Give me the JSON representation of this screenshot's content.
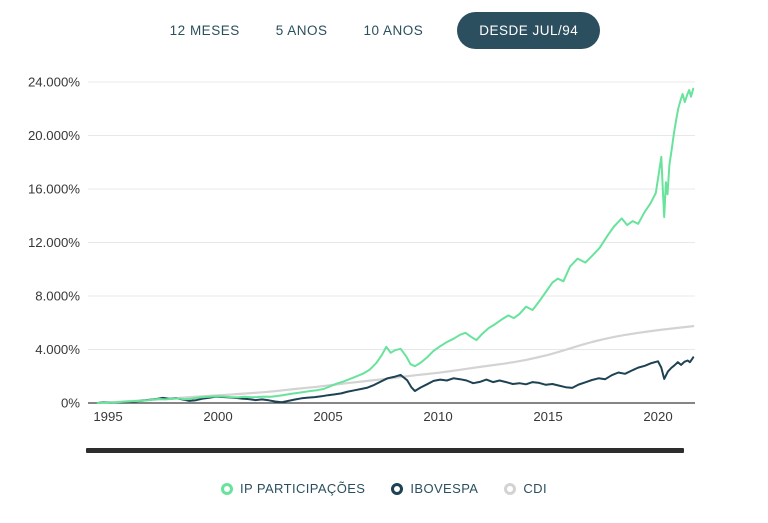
{
  "tabs": {
    "items": [
      {
        "label": "12 MESES",
        "active": false
      },
      {
        "label": "5 ANOS",
        "active": false
      },
      {
        "label": "10 ANOS",
        "active": false
      },
      {
        "label": "DESDE JUL/94",
        "active": true
      }
    ]
  },
  "legend": {
    "items": [
      {
        "label": "IP PARTICIPAÇÕES",
        "color": "#68e39c"
      },
      {
        "label": "IBOVESPA",
        "color": "#1d4254"
      },
      {
        "label": "CDI",
        "color": "#d3d3d3"
      }
    ]
  },
  "colors": {
    "accent_teal": "#2b4f5e",
    "pill_background": "#2b4f5e",
    "pill_text": "#ffffff",
    "gridline": "#e8e8e8",
    "axis_line": "#3c3c3c",
    "tick_text": "#383838",
    "bottom_bar": "#2d2d2d",
    "series_ip": "#68e39c",
    "series_ibovespa": "#1d4254",
    "series_cdi": "#d3d3d3"
  },
  "chart_data": {
    "type": "line",
    "title": "",
    "x_unit": "year",
    "x_range": [
      1994.54,
      2021.65
    ],
    "y_range": [
      0,
      24000
    ],
    "grid": "horizontal",
    "legend_position": "bottom",
    "y_ticks": [
      {
        "value": 0,
        "label": "0%"
      },
      {
        "value": 4000,
        "label": "4.000%"
      },
      {
        "value": 8000,
        "label": "8.000%"
      },
      {
        "value": 12000,
        "label": "12.000%"
      },
      {
        "value": 16000,
        "label": "16.000%"
      },
      {
        "value": 20000,
        "label": "20.000%"
      },
      {
        "value": 24000,
        "label": "24.000%"
      }
    ],
    "x_ticks": [
      {
        "value": 1995,
        "label": "1995"
      },
      {
        "value": 2000,
        "label": "2000"
      },
      {
        "value": 2005,
        "label": "2005"
      },
      {
        "value": 2010,
        "label": "2010"
      },
      {
        "value": 2015,
        "label": "2015"
      },
      {
        "value": 2020,
        "label": "2020"
      }
    ],
    "series": [
      {
        "name": "IP PARTICIPAÇÕES",
        "key": "ip-participacoes",
        "color": "#68e39c",
        "width": 2,
        "points": [
          [
            1994.54,
            0
          ],
          [
            1994.8,
            30
          ],
          [
            1995.1,
            20
          ],
          [
            1995.4,
            60
          ],
          [
            1995.7,
            90
          ],
          [
            1996.0,
            120
          ],
          [
            1996.3,
            150
          ],
          [
            1996.6,
            170
          ],
          [
            1997.0,
            240
          ],
          [
            1997.3,
            300
          ],
          [
            1997.6,
            270
          ],
          [
            1997.9,
            310
          ],
          [
            1998.2,
            340
          ],
          [
            1998.5,
            280
          ],
          [
            1998.8,
            320
          ],
          [
            1999.1,
            400
          ],
          [
            1999.4,
            450
          ],
          [
            1999.7,
            480
          ],
          [
            2000.0,
            510
          ],
          [
            2000.3,
            480
          ],
          [
            2000.6,
            440
          ],
          [
            2000.9,
            420
          ],
          [
            2001.2,
            460
          ],
          [
            2001.5,
            430
          ],
          [
            2001.8,
            450
          ],
          [
            2002.1,
            480
          ],
          [
            2002.4,
            460
          ],
          [
            2002.7,
            520
          ],
          [
            2003.0,
            600
          ],
          [
            2003.3,
            680
          ],
          [
            2003.6,
            750
          ],
          [
            2003.9,
            820
          ],
          [
            2004.2,
            900
          ],
          [
            2004.5,
            960
          ],
          [
            2004.8,
            1050
          ],
          [
            2005.1,
            1250
          ],
          [
            2005.4,
            1450
          ],
          [
            2005.7,
            1600
          ],
          [
            2006.0,
            1800
          ],
          [
            2006.3,
            2000
          ],
          [
            2006.6,
            2200
          ],
          [
            2006.9,
            2500
          ],
          [
            2007.2,
            3000
          ],
          [
            2007.45,
            3600
          ],
          [
            2007.65,
            4200
          ],
          [
            2007.85,
            3750
          ],
          [
            2008.05,
            3950
          ],
          [
            2008.3,
            4050
          ],
          [
            2008.55,
            3500
          ],
          [
            2008.75,
            2900
          ],
          [
            2008.95,
            2750
          ],
          [
            2009.2,
            3000
          ],
          [
            2009.5,
            3400
          ],
          [
            2009.8,
            3900
          ],
          [
            2010.1,
            4250
          ],
          [
            2010.4,
            4550
          ],
          [
            2010.7,
            4800
          ],
          [
            2011.0,
            5100
          ],
          [
            2011.25,
            5250
          ],
          [
            2011.5,
            4950
          ],
          [
            2011.75,
            4700
          ],
          [
            2012.0,
            5150
          ],
          [
            2012.3,
            5600
          ],
          [
            2012.6,
            5900
          ],
          [
            2012.9,
            6250
          ],
          [
            2013.2,
            6550
          ],
          [
            2013.45,
            6350
          ],
          [
            2013.7,
            6650
          ],
          [
            2014.0,
            7200
          ],
          [
            2014.3,
            6950
          ],
          [
            2014.6,
            7600
          ],
          [
            2014.9,
            8300
          ],
          [
            2015.2,
            9000
          ],
          [
            2015.45,
            9300
          ],
          [
            2015.7,
            9100
          ],
          [
            2016.0,
            10200
          ],
          [
            2016.35,
            10800
          ],
          [
            2016.7,
            10500
          ],
          [
            2017.0,
            11000
          ],
          [
            2017.35,
            11600
          ],
          [
            2017.7,
            12500
          ],
          [
            2018.0,
            13200
          ],
          [
            2018.35,
            13800
          ],
          [
            2018.6,
            13300
          ],
          [
            2018.85,
            13600
          ],
          [
            2019.1,
            13400
          ],
          [
            2019.4,
            14300
          ],
          [
            2019.65,
            14900
          ],
          [
            2019.9,
            15700
          ],
          [
            2020.05,
            17300
          ],
          [
            2020.15,
            18400
          ],
          [
            2020.22,
            16000
          ],
          [
            2020.28,
            13900
          ],
          [
            2020.36,
            16500
          ],
          [
            2020.43,
            15600
          ],
          [
            2020.52,
            17800
          ],
          [
            2020.62,
            18900
          ],
          [
            2020.72,
            20100
          ],
          [
            2020.82,
            21100
          ],
          [
            2020.92,
            22000
          ],
          [
            2021.02,
            22600
          ],
          [
            2021.12,
            23100
          ],
          [
            2021.22,
            22500
          ],
          [
            2021.32,
            23000
          ],
          [
            2021.42,
            23400
          ],
          [
            2021.5,
            22900
          ],
          [
            2021.6,
            23500
          ]
        ]
      },
      {
        "name": "IBOVESPA",
        "key": "ibovespa",
        "color": "#1d4254",
        "width": 2,
        "points": [
          [
            1994.54,
            0
          ],
          [
            1994.8,
            60
          ],
          [
            1995.1,
            20
          ],
          [
            1995.4,
            40
          ],
          [
            1995.7,
            70
          ],
          [
            1996.0,
            100
          ],
          [
            1996.3,
            130
          ],
          [
            1996.6,
            180
          ],
          [
            1996.9,
            240
          ],
          [
            1997.2,
            300
          ],
          [
            1997.5,
            390
          ],
          [
            1997.8,
            310
          ],
          [
            1998.1,
            360
          ],
          [
            1998.4,
            260
          ],
          [
            1998.7,
            160
          ],
          [
            1999.0,
            210
          ],
          [
            1999.3,
            330
          ],
          [
            1999.6,
            390
          ],
          [
            1999.9,
            480
          ],
          [
            2000.2,
            450
          ],
          [
            2000.5,
            420
          ],
          [
            2000.8,
            380
          ],
          [
            2001.1,
            330
          ],
          [
            2001.4,
            290
          ],
          [
            2001.7,
            220
          ],
          [
            2002.0,
            270
          ],
          [
            2002.3,
            200
          ],
          [
            2002.6,
            110
          ],
          [
            2002.9,
            60
          ],
          [
            2003.2,
            160
          ],
          [
            2003.5,
            260
          ],
          [
            2003.8,
            350
          ],
          [
            2004.1,
            400
          ],
          [
            2004.4,
            440
          ],
          [
            2004.7,
            500
          ],
          [
            2005.0,
            580
          ],
          [
            2005.3,
            640
          ],
          [
            2005.6,
            720
          ],
          [
            2005.9,
            850
          ],
          [
            2006.2,
            950
          ],
          [
            2006.5,
            1050
          ],
          [
            2006.8,
            1150
          ],
          [
            2007.1,
            1350
          ],
          [
            2007.4,
            1600
          ],
          [
            2007.7,
            1850
          ],
          [
            2008.0,
            1950
          ],
          [
            2008.3,
            2100
          ],
          [
            2008.6,
            1700
          ],
          [
            2008.8,
            1150
          ],
          [
            2008.95,
            900
          ],
          [
            2009.2,
            1150
          ],
          [
            2009.5,
            1400
          ],
          [
            2009.8,
            1650
          ],
          [
            2010.1,
            1750
          ],
          [
            2010.4,
            1680
          ],
          [
            2010.7,
            1850
          ],
          [
            2011.0,
            1780
          ],
          [
            2011.3,
            1680
          ],
          [
            2011.6,
            1480
          ],
          [
            2011.9,
            1580
          ],
          [
            2012.2,
            1750
          ],
          [
            2012.5,
            1560
          ],
          [
            2012.8,
            1680
          ],
          [
            2013.1,
            1560
          ],
          [
            2013.4,
            1420
          ],
          [
            2013.7,
            1480
          ],
          [
            2014.0,
            1400
          ],
          [
            2014.3,
            1560
          ],
          [
            2014.6,
            1500
          ],
          [
            2014.9,
            1360
          ],
          [
            2015.2,
            1420
          ],
          [
            2015.5,
            1300
          ],
          [
            2015.8,
            1180
          ],
          [
            2016.1,
            1130
          ],
          [
            2016.4,
            1380
          ],
          [
            2016.7,
            1550
          ],
          [
            2017.0,
            1720
          ],
          [
            2017.3,
            1850
          ],
          [
            2017.6,
            1780
          ],
          [
            2017.9,
            2080
          ],
          [
            2018.2,
            2280
          ],
          [
            2018.5,
            2180
          ],
          [
            2018.8,
            2420
          ],
          [
            2019.1,
            2650
          ],
          [
            2019.4,
            2780
          ],
          [
            2019.7,
            2980
          ],
          [
            2020.0,
            3120
          ],
          [
            2020.15,
            2650
          ],
          [
            2020.28,
            1800
          ],
          [
            2020.45,
            2350
          ],
          [
            2020.6,
            2620
          ],
          [
            2020.75,
            2820
          ],
          [
            2020.9,
            3050
          ],
          [
            2021.05,
            2850
          ],
          [
            2021.2,
            3080
          ],
          [
            2021.35,
            3180
          ],
          [
            2021.45,
            3050
          ],
          [
            2021.55,
            3280
          ],
          [
            2021.6,
            3420
          ]
        ]
      },
      {
        "name": "CDI",
        "key": "cdi",
        "color": "#d3d3d3",
        "width": 2.2,
        "points": [
          [
            1994.54,
            0
          ],
          [
            1995.0,
            40
          ],
          [
            1995.5,
            90
          ],
          [
            1996.0,
            140
          ],
          [
            1996.5,
            190
          ],
          [
            1997.0,
            240
          ],
          [
            1997.5,
            290
          ],
          [
            1998.0,
            350
          ],
          [
            1998.5,
            410
          ],
          [
            1999.0,
            470
          ],
          [
            1999.5,
            520
          ],
          [
            2000.0,
            570
          ],
          [
            2000.5,
            620
          ],
          [
            2001.0,
            680
          ],
          [
            2001.5,
            740
          ],
          [
            2002.0,
            800
          ],
          [
            2002.5,
            870
          ],
          [
            2003.0,
            960
          ],
          [
            2003.5,
            1050
          ],
          [
            2004.0,
            1130
          ],
          [
            2004.5,
            1210
          ],
          [
            2005.0,
            1310
          ],
          [
            2005.5,
            1410
          ],
          [
            2006.0,
            1510
          ],
          [
            2006.5,
            1600
          ],
          [
            2007.0,
            1690
          ],
          [
            2007.5,
            1780
          ],
          [
            2008.0,
            1880
          ],
          [
            2008.5,
            1980
          ],
          [
            2009.0,
            2080
          ],
          [
            2009.5,
            2170
          ],
          [
            2010.0,
            2260
          ],
          [
            2010.5,
            2360
          ],
          [
            2011.0,
            2480
          ],
          [
            2011.5,
            2600
          ],
          [
            2012.0,
            2720
          ],
          [
            2012.5,
            2830
          ],
          [
            2013.0,
            2940
          ],
          [
            2013.5,
            3070
          ],
          [
            2014.0,
            3220
          ],
          [
            2014.5,
            3400
          ],
          [
            2015.0,
            3600
          ],
          [
            2015.5,
            3830
          ],
          [
            2016.0,
            4080
          ],
          [
            2016.5,
            4330
          ],
          [
            2017.0,
            4560
          ],
          [
            2017.5,
            4760
          ],
          [
            2018.0,
            4940
          ],
          [
            2018.5,
            5090
          ],
          [
            2019.0,
            5220
          ],
          [
            2019.5,
            5340
          ],
          [
            2020.0,
            5450
          ],
          [
            2020.5,
            5540
          ],
          [
            2021.0,
            5640
          ],
          [
            2021.6,
            5750
          ]
        ]
      }
    ]
  }
}
